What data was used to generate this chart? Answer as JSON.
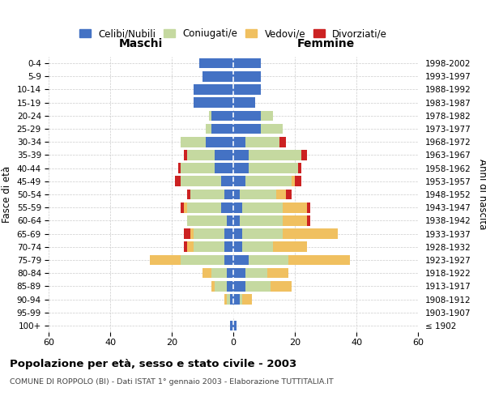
{
  "age_groups": [
    "100+",
    "95-99",
    "90-94",
    "85-89",
    "80-84",
    "75-79",
    "70-74",
    "65-69",
    "60-64",
    "55-59",
    "50-54",
    "45-49",
    "40-44",
    "35-39",
    "30-34",
    "25-29",
    "20-24",
    "15-19",
    "10-14",
    "5-9",
    "0-4"
  ],
  "birth_years": [
    "≤ 1902",
    "1903-1907",
    "1908-1912",
    "1913-1917",
    "1918-1922",
    "1923-1927",
    "1928-1932",
    "1933-1937",
    "1938-1942",
    "1943-1947",
    "1948-1952",
    "1953-1957",
    "1958-1962",
    "1963-1967",
    "1968-1972",
    "1973-1977",
    "1978-1982",
    "1983-1987",
    "1988-1992",
    "1993-1997",
    "1998-2002"
  ],
  "colors": {
    "celibi": "#4472c4",
    "coniugati": "#c5d9a0",
    "vedovi": "#f0c060",
    "divorziati": "#cc2222"
  },
  "maschi": {
    "celibi": [
      1,
      0,
      1,
      2,
      2,
      3,
      3,
      3,
      2,
      4,
      3,
      4,
      6,
      6,
      9,
      7,
      7,
      13,
      13,
      10,
      11
    ],
    "coniugati": [
      0,
      0,
      1,
      4,
      5,
      14,
      10,
      10,
      13,
      11,
      11,
      13,
      11,
      9,
      8,
      2,
      1,
      0,
      0,
      0,
      0
    ],
    "vedovi": [
      0,
      0,
      1,
      1,
      3,
      10,
      2,
      1,
      0,
      1,
      0,
      0,
      0,
      0,
      0,
      0,
      0,
      0,
      0,
      0,
      0
    ],
    "divorziati": [
      0,
      0,
      0,
      0,
      0,
      0,
      1,
      2,
      0,
      1,
      1,
      2,
      1,
      1,
      0,
      0,
      0,
      0,
      0,
      0,
      0
    ]
  },
  "femmine": {
    "celibi": [
      1,
      0,
      2,
      4,
      4,
      5,
      3,
      3,
      2,
      3,
      2,
      4,
      5,
      5,
      4,
      9,
      9,
      7,
      9,
      9,
      9
    ],
    "coniugati": [
      0,
      0,
      1,
      8,
      7,
      13,
      10,
      13,
      14,
      13,
      12,
      15,
      16,
      17,
      11,
      7,
      4,
      0,
      0,
      0,
      0
    ],
    "vedovi": [
      0,
      0,
      3,
      7,
      7,
      20,
      11,
      18,
      8,
      8,
      3,
      1,
      0,
      0,
      0,
      0,
      0,
      0,
      0,
      0,
      0
    ],
    "divorziati": [
      0,
      0,
      0,
      0,
      0,
      0,
      0,
      0,
      1,
      1,
      2,
      2,
      1,
      2,
      2,
      0,
      0,
      0,
      0,
      0,
      0
    ]
  },
  "xlim": 60,
  "xticks": [
    -60,
    -40,
    -20,
    0,
    20,
    40,
    60
  ],
  "xticklabels": [
    "60",
    "40",
    "20",
    "0",
    "20",
    "40",
    "60"
  ],
  "title": "Popolazione per età, sesso e stato civile - 2003",
  "subtitle": "COMUNE DI ROPPOLO (BI) - Dati ISTAT 1° gennaio 2003 - Elaborazione TUTTITALIA.IT",
  "ylabel_left": "Fasce di età",
  "ylabel_right": "Anni di nascita",
  "legend_labels": [
    "Celibi/Nubili",
    "Coniugati/e",
    "Vedovi/e",
    "Divorziati/e"
  ],
  "maschi_label": "Maschi",
  "femmine_label": "Femmine",
  "background": "#ffffff",
  "bar_height": 0.78
}
